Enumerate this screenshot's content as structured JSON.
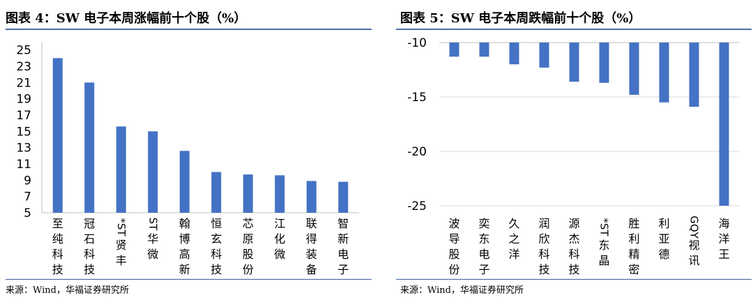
{
  "charts": [
    {
      "title": "图表 4：SW 电子本周涨幅前十个股（%）",
      "source": "来源：Wind，华福证券研究所"
    },
    {
      "title": "图表 5：SW 电子本周跌幅前十个股（%）",
      "source": "来源：Wind，华福证券研究所"
    }
  ],
  "colors": {
    "bar": "#4472C4",
    "rule": "#4a6fa5"
  },
  "chart_data": [
    {
      "type": "bar",
      "title": "图表 4：SW 电子本周涨幅前十个股（%）",
      "categories": [
        "至纯科技",
        "冠石科技",
        "*ST贤丰",
        "ST华微",
        "翰博高新",
        "恒玄科技",
        "芯原股份",
        "江化微",
        "联得装备",
        "智新电子"
      ],
      "values": [
        24.0,
        21.0,
        15.6,
        15.0,
        12.6,
        10.0,
        9.7,
        9.6,
        8.9,
        8.8
      ],
      "yticks": [
        5,
        7,
        9,
        11,
        13,
        15,
        17,
        19,
        21,
        23,
        25
      ],
      "ylim": [
        5,
        26
      ],
      "grid": false
    },
    {
      "type": "bar",
      "title": "图表 5：SW 电子本周跌幅前十个股（%）",
      "categories": [
        "波导股份",
        "奕东电子",
        "久之洋",
        "润欣科技",
        "源杰科技",
        "*ST东晶",
        "胜利精密",
        "利亚德",
        "GQY视讯",
        "海洋王"
      ],
      "values": [
        -11.3,
        -11.3,
        -12.0,
        -12.3,
        -13.6,
        -13.7,
        -14.8,
        -15.5,
        -15.9,
        -25.0
      ],
      "yticks": [
        -10,
        -15,
        -20,
        -25
      ],
      "ylim": [
        -26,
        -10
      ],
      "grid": true
    }
  ]
}
